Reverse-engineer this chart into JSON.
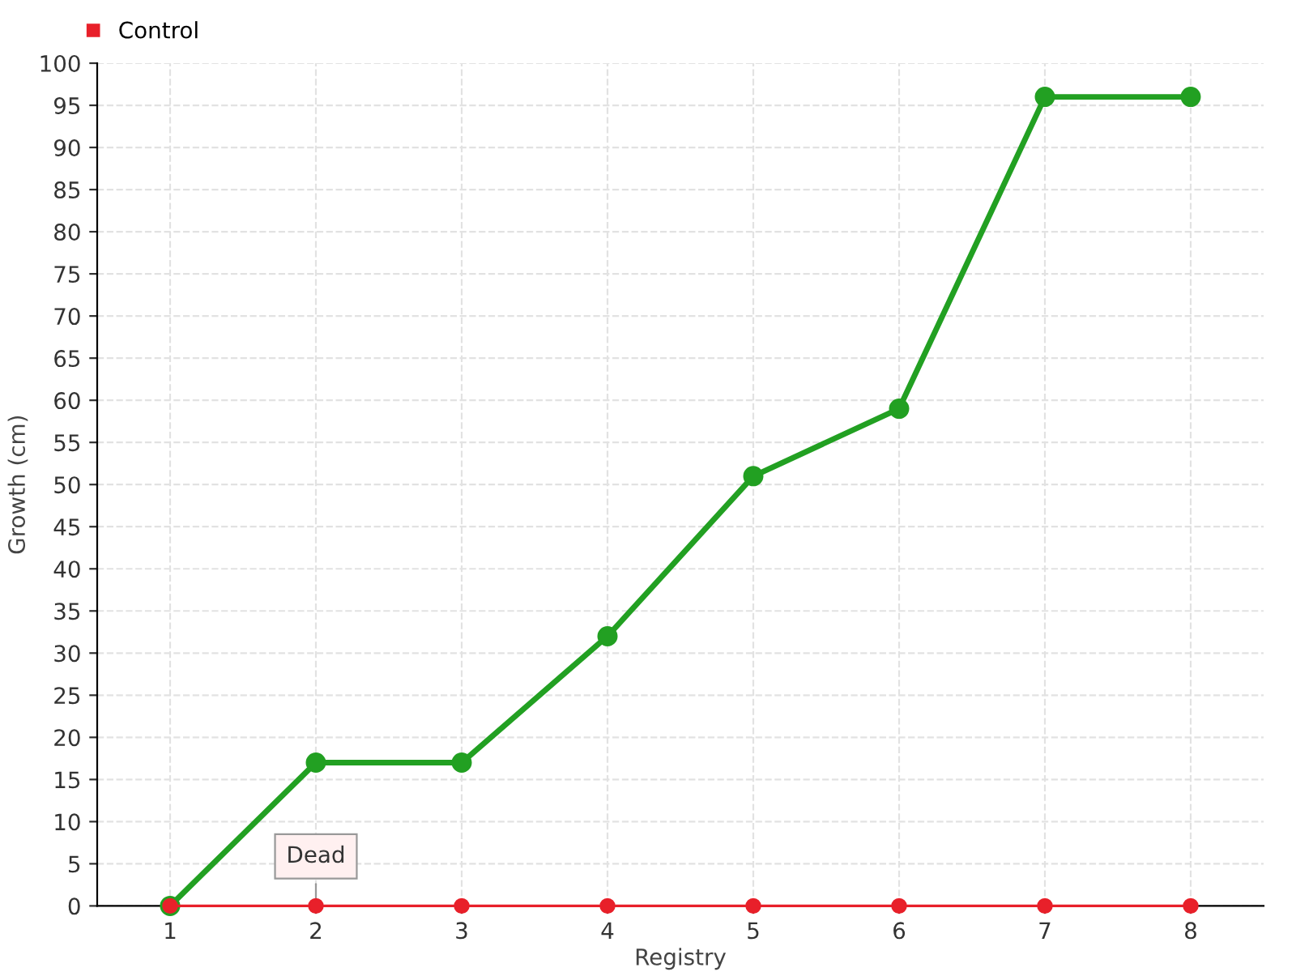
{
  "chart_data": {
    "type": "line",
    "xlabel": "Registry",
    "ylabel": "Growth (cm)",
    "categories": [
      "1",
      "2",
      "3",
      "4",
      "5",
      "6",
      "7",
      "8"
    ],
    "series": [
      {
        "color": "#22a022",
        "values": [
          0,
          17,
          17,
          32,
          51,
          59,
          96,
          96
        ]
      },
      {
        "name": "Control",
        "color": "#e8202a",
        "values": [
          0,
          0,
          0,
          0,
          0,
          0,
          0,
          0
        ]
      }
    ],
    "ylim": [
      0,
      100
    ],
    "yticks": [
      0,
      5,
      10,
      15,
      20,
      25,
      30,
      35,
      40,
      45,
      50,
      55,
      60,
      65,
      70,
      75,
      80,
      85,
      90,
      95,
      100
    ],
    "grid": true,
    "legend": "top left",
    "marker": "circle",
    "line_style": "solid",
    "annotations": [
      {
        "text": "Dead",
        "x": "2",
        "y": 0
      }
    ]
  }
}
